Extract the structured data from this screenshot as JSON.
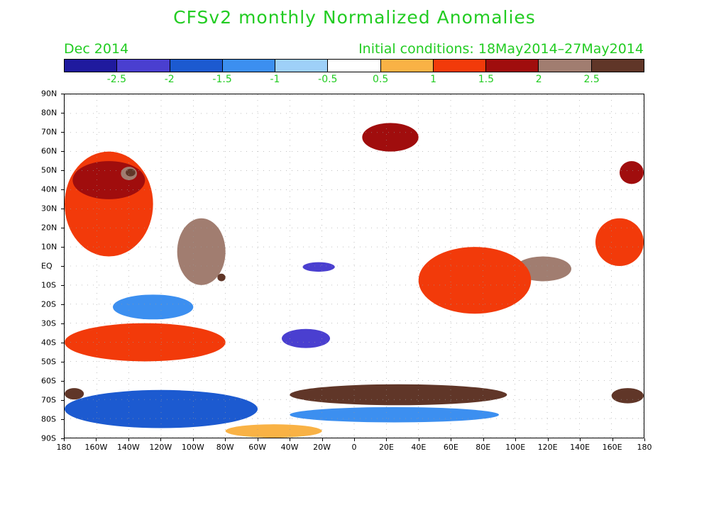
{
  "title": "CFSv2 monthly Normalized Anomalies",
  "valid_month": "Dec 2014",
  "initial_conditions": "Initial conditions: 18May2014–27May2014",
  "colorbar": {
    "colors": [
      "#1f1a9e",
      "#4a3fd0",
      "#1c5ad0",
      "#3c8ff0",
      "#9ed0f8",
      "#ffffff",
      "#f9b245",
      "#f23a0a",
      "#a00d0d",
      "#a17d70",
      "#603628"
    ],
    "labels": [
      "-2.5",
      "-2",
      "-1.5",
      "-1",
      "-0.5",
      "0.5",
      "1",
      "1.5",
      "2",
      "2.5"
    ]
  },
  "map": {
    "lat_labels": [
      "90N",
      "80N",
      "70N",
      "60N",
      "50N",
      "40N",
      "30N",
      "20N",
      "10N",
      "EQ",
      "10S",
      "20S",
      "30S",
      "40S",
      "50S",
      "60S",
      "70S",
      "80S",
      "90S"
    ],
    "lon_labels": [
      "180",
      "160W",
      "140W",
      "120W",
      "100W",
      "80W",
      "60W",
      "40W",
      "20W",
      "0",
      "20E",
      "40E",
      "60E",
      "80E",
      "100E",
      "120E",
      "140E",
      "160E",
      "180"
    ],
    "anomaly_regions": [
      {
        "level": "1",
        "lon": [
          -180,
          -125
        ],
        "lat": [
          5,
          60
        ]
      },
      {
        "level": "1.5",
        "lon": [
          -175,
          -130
        ],
        "lat": [
          35,
          55
        ]
      },
      {
        "level": "2",
        "lon": [
          -145,
          -135
        ],
        "lat": [
          45,
          52
        ]
      },
      {
        "level": "2.5",
        "lon": [
          -142,
          -136
        ],
        "lat": [
          47,
          51
        ]
      },
      {
        "level": "2",
        "lon": [
          -110,
          -80
        ],
        "lat": [
          -10,
          25
        ]
      },
      {
        "level": "2.5",
        "lon": [
          -85,
          -80
        ],
        "lat": [
          -8,
          -4
        ]
      },
      {
        "level": "-2",
        "lon": [
          -32,
          -12
        ],
        "lat": [
          -3,
          2
        ]
      },
      {
        "level": "-2",
        "lon": [
          -45,
          -15
        ],
        "lat": [
          -43,
          -33
        ]
      },
      {
        "level": "-1",
        "lon": [
          -150,
          -100
        ],
        "lat": [
          -28,
          -15
        ]
      },
      {
        "level": "1.5",
        "lon": [
          5,
          40
        ],
        "lat": [
          60,
          75
        ]
      },
      {
        "level": "2",
        "lon": [
          100,
          135
        ],
        "lat": [
          -8,
          5
        ]
      },
      {
        "level": "1",
        "lon": [
          150,
          180
        ],
        "lat": [
          0,
          25
        ]
      },
      {
        "level": "1.5",
        "lon": [
          165,
          180
        ],
        "lat": [
          43,
          55
        ]
      },
      {
        "level": "1",
        "lon": [
          40,
          110
        ],
        "lat": [
          -25,
          10
        ]
      },
      {
        "level": "1",
        "lon": [
          -180,
          -80
        ],
        "lat": [
          -50,
          -30
        ]
      },
      {
        "level": "2.5",
        "lon": [
          -40,
          95
        ],
        "lat": [
          -73,
          -62
        ]
      },
      {
        "level": "2.5",
        "lon": [
          160,
          180
        ],
        "lat": [
          -72,
          -64
        ]
      },
      {
        "level": "2.5",
        "lon": [
          -180,
          -168
        ],
        "lat": [
          -70,
          -64
        ]
      },
      {
        "level": "-1.5",
        "lon": [
          -180,
          -60
        ],
        "lat": [
          -85,
          -65
        ]
      },
      {
        "level": "-1",
        "lon": [
          -40,
          90
        ],
        "lat": [
          -82,
          -74
        ]
      },
      {
        "level": "0.5",
        "lon": [
          -80,
          -20
        ],
        "lat": [
          -90,
          -83
        ]
      }
    ]
  }
}
